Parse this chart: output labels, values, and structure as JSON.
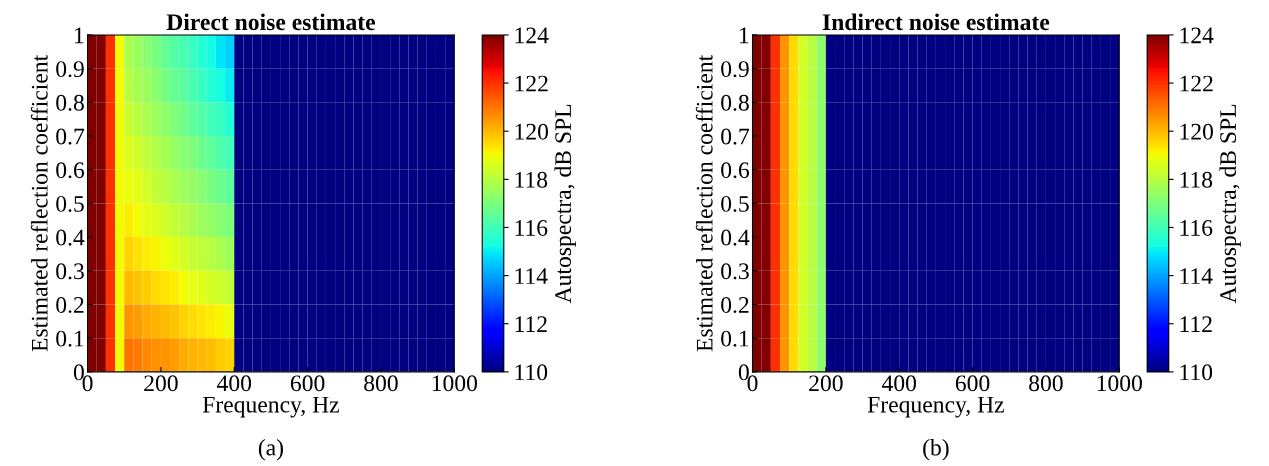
{
  "chart_data": [
    {
      "type": "heatmap",
      "title": "Direct noise estimate",
      "xlabel": "Frequency, Hz",
      "ylabel": "Estimated reflection coefficient",
      "clabel": "Autospectra, dB SPL",
      "annotations": [
        "(a)"
      ],
      "x": [
        12.5,
        37.5,
        62.5,
        87.5,
        112.5,
        137.5,
        162.5,
        187.5,
        212.5,
        237.5,
        262.5,
        287.5,
        312.5,
        337.5,
        362.5,
        387.5,
        412.5,
        437.5,
        462.5,
        487.5,
        512.5,
        537.5,
        562.5,
        587.5,
        612.5,
        637.5,
        662.5,
        687.5,
        712.5,
        737.5,
        762.5,
        787.5,
        812.5,
        837.5,
        862.5,
        887.5,
        912.5,
        937.5,
        962.5,
        987.5
      ],
      "y": [
        0.95,
        0.85,
        0.75,
        0.65,
        0.55,
        0.45,
        0.35,
        0.25,
        0.15,
        0.05
      ],
      "xlim": [
        0,
        1000
      ],
      "xticks": [
        0,
        200,
        400,
        600,
        800,
        1000
      ],
      "ylim": [
        0,
        1
      ],
      "yticks": [
        0,
        0.1,
        0.2,
        0.3,
        0.4,
        0.5,
        0.6,
        0.7,
        0.8,
        0.9,
        1
      ],
      "clim": [
        110,
        124
      ],
      "cticks": [
        110,
        112,
        114,
        116,
        118,
        120,
        122,
        124
      ],
      "grid": false,
      "cells": [
        [
          124,
          124,
          122,
          119,
          117.8,
          117.5,
          117.2,
          116.9,
          116.6,
          116.3,
          116.1,
          115.8,
          115.5,
          115.2,
          114.9,
          114.6,
          110,
          110,
          110,
          110,
          110,
          110,
          110,
          110,
          110,
          110,
          110,
          110,
          110,
          110,
          110,
          110,
          110,
          110,
          110,
          110,
          110,
          110,
          110,
          110
        ],
        [
          124,
          124,
          122,
          119,
          118.0,
          117.7,
          117.5,
          117.2,
          116.9,
          116.6,
          116.4,
          116.1,
          115.8,
          115.5,
          115.3,
          115.0,
          110,
          110,
          110,
          110,
          110,
          110,
          110,
          110,
          110,
          110,
          110,
          110,
          110,
          110,
          110,
          110,
          110,
          110,
          110,
          110,
          110,
          110,
          110,
          110
        ],
        [
          124,
          124,
          122,
          119,
          118.3,
          118.0,
          117.8,
          117.5,
          117.3,
          117.0,
          116.8,
          116.5,
          116.3,
          116.0,
          115.8,
          115.5,
          110,
          110,
          110,
          110,
          110,
          110,
          110,
          110,
          110,
          110,
          110,
          110,
          110,
          110,
          110,
          110,
          110,
          110,
          110,
          110,
          110,
          110,
          110,
          110
        ],
        [
          124,
          124,
          122,
          119,
          118.6,
          118.4,
          118.1,
          117.9,
          117.7,
          117.4,
          117.2,
          117.0,
          116.7,
          116.5,
          116.2,
          116.0,
          110,
          110,
          110,
          110,
          110,
          110,
          110,
          110,
          110,
          110,
          110,
          110,
          110,
          110,
          110,
          110,
          110,
          110,
          110,
          110,
          110,
          110,
          110,
          110
        ],
        [
          124,
          124,
          122,
          119,
          118.9,
          118.7,
          118.5,
          118.2,
          118.0,
          117.8,
          117.6,
          117.4,
          117.2,
          116.9,
          116.7,
          116.5,
          110,
          110,
          110,
          110,
          110,
          110,
          110,
          110,
          110,
          110,
          110,
          110,
          110,
          110,
          110,
          110,
          110,
          110,
          110,
          110,
          110,
          110,
          110,
          110
        ],
        [
          124,
          124,
          122,
          119,
          119.2,
          119.0,
          118.8,
          118.6,
          118.4,
          118.2,
          118.0,
          117.8,
          117.6,
          117.4,
          117.2,
          117.0,
          110,
          110,
          110,
          110,
          110,
          110,
          110,
          110,
          110,
          110,
          110,
          110,
          110,
          110,
          110,
          110,
          110,
          110,
          110,
          110,
          110,
          110,
          110,
          110
        ],
        [
          124,
          124,
          122,
          119,
          119.6,
          119.4,
          119.2,
          119.1,
          118.9,
          118.7,
          118.5,
          118.3,
          118.1,
          118.0,
          117.8,
          117.6,
          110,
          110,
          110,
          110,
          110,
          110,
          110,
          110,
          110,
          110,
          110,
          110,
          110,
          110,
          110,
          110,
          110,
          110,
          110,
          110,
          110,
          110,
          110,
          110
        ],
        [
          124,
          124,
          122,
          119,
          120.0,
          119.8,
          119.7,
          119.5,
          119.3,
          119.2,
          119.0,
          118.8,
          118.7,
          118.5,
          118.4,
          118.2,
          110,
          110,
          110,
          110,
          110,
          110,
          110,
          110,
          110,
          110,
          110,
          110,
          110,
          110,
          110,
          110,
          110,
          110,
          110,
          110,
          110,
          110,
          110,
          110
        ],
        [
          124,
          124,
          122,
          119,
          120.5,
          120.4,
          120.2,
          120.1,
          119.9,
          119.8,
          119.6,
          119.5,
          119.3,
          119.2,
          119.1,
          118.9,
          110,
          110,
          110,
          110,
          110,
          110,
          110,
          110,
          110,
          110,
          110,
          110,
          110,
          110,
          110,
          110,
          110,
          110,
          110,
          110,
          110,
          110,
          110,
          110
        ],
        [
          124,
          124,
          122,
          119,
          121.0,
          120.9,
          120.7,
          120.6,
          120.5,
          120.4,
          120.2,
          120.1,
          120.0,
          119.9,
          119.7,
          119.6,
          110,
          110,
          110,
          110,
          110,
          110,
          110,
          110,
          110,
          110,
          110,
          110,
          110,
          110,
          110,
          110,
          110,
          110,
          110,
          110,
          110,
          110,
          110,
          110
        ]
      ]
    },
    {
      "type": "heatmap",
      "title": "Indirect noise estimate",
      "xlabel": "Frequency, Hz",
      "ylabel": "Estimated reflection coefficient",
      "clabel": "Autospectra, dB SPL",
      "annotations": [
        "(b)"
      ],
      "x": [
        12.5,
        37.5,
        62.5,
        87.5,
        112.5,
        137.5,
        162.5,
        187.5,
        212.5,
        237.5,
        262.5,
        287.5,
        312.5,
        337.5,
        362.5,
        387.5,
        412.5,
        437.5,
        462.5,
        487.5,
        512.5,
        537.5,
        562.5,
        587.5,
        612.5,
        637.5,
        662.5,
        687.5,
        712.5,
        737.5,
        762.5,
        787.5,
        812.5,
        837.5,
        862.5,
        887.5,
        912.5,
        937.5,
        962.5,
        987.5
      ],
      "y": [
        0.95,
        0.85,
        0.75,
        0.65,
        0.55,
        0.45,
        0.35,
        0.25,
        0.15,
        0.05
      ],
      "xlim": [
        0,
        1000
      ],
      "xticks": [
        0,
        200,
        400,
        600,
        800,
        1000
      ],
      "ylim": [
        0,
        1
      ],
      "yticks": [
        0,
        0.1,
        0.2,
        0.3,
        0.4,
        0.5,
        0.6,
        0.7,
        0.8,
        0.9,
        1
      ],
      "clim": [
        110,
        124
      ],
      "cticks": [
        110,
        112,
        114,
        116,
        118,
        120,
        122,
        124
      ],
      "grid": false,
      "cells": [
        [
          124,
          124,
          122,
          120.5,
          119.5,
          118.5,
          118,
          117.3,
          110,
          110,
          110,
          110,
          110,
          110,
          110,
          110,
          110,
          110,
          110,
          110,
          110,
          110,
          110,
          110,
          110,
          110,
          110,
          110,
          110,
          110,
          110,
          110,
          110,
          110,
          110,
          110,
          110,
          110,
          110,
          110
        ],
        [
          124,
          124,
          122,
          120.5,
          119.5,
          118.5,
          118,
          117.3,
          110,
          110,
          110,
          110,
          110,
          110,
          110,
          110,
          110,
          110,
          110,
          110,
          110,
          110,
          110,
          110,
          110,
          110,
          110,
          110,
          110,
          110,
          110,
          110,
          110,
          110,
          110,
          110,
          110,
          110,
          110,
          110
        ],
        [
          124,
          124,
          122,
          120.5,
          119.5,
          118.5,
          118,
          117.3,
          110,
          110,
          110,
          110,
          110,
          110,
          110,
          110,
          110,
          110,
          110,
          110,
          110,
          110,
          110,
          110,
          110,
          110,
          110,
          110,
          110,
          110,
          110,
          110,
          110,
          110,
          110,
          110,
          110,
          110,
          110,
          110
        ],
        [
          124,
          124,
          122,
          120.5,
          119.5,
          118.5,
          118,
          117.3,
          110,
          110,
          110,
          110,
          110,
          110,
          110,
          110,
          110,
          110,
          110,
          110,
          110,
          110,
          110,
          110,
          110,
          110,
          110,
          110,
          110,
          110,
          110,
          110,
          110,
          110,
          110,
          110,
          110,
          110,
          110,
          110
        ],
        [
          124,
          124,
          122,
          120.5,
          119.5,
          118.5,
          118,
          117.3,
          110,
          110,
          110,
          110,
          110,
          110,
          110,
          110,
          110,
          110,
          110,
          110,
          110,
          110,
          110,
          110,
          110,
          110,
          110,
          110,
          110,
          110,
          110,
          110,
          110,
          110,
          110,
          110,
          110,
          110,
          110,
          110
        ],
        [
          124,
          124,
          122,
          120.5,
          119.5,
          118.5,
          118,
          117.3,
          110,
          110,
          110,
          110,
          110,
          110,
          110,
          110,
          110,
          110,
          110,
          110,
          110,
          110,
          110,
          110,
          110,
          110,
          110,
          110,
          110,
          110,
          110,
          110,
          110,
          110,
          110,
          110,
          110,
          110,
          110,
          110
        ],
        [
          124,
          124,
          122,
          120.5,
          119.5,
          118.5,
          118,
          117.3,
          110,
          110,
          110,
          110,
          110,
          110,
          110,
          110,
          110,
          110,
          110,
          110,
          110,
          110,
          110,
          110,
          110,
          110,
          110,
          110,
          110,
          110,
          110,
          110,
          110,
          110,
          110,
          110,
          110,
          110,
          110,
          110
        ],
        [
          124,
          124,
          122,
          120.5,
          119.5,
          118.5,
          118,
          117.3,
          110,
          110,
          110,
          110,
          110,
          110,
          110,
          110,
          110,
          110,
          110,
          110,
          110,
          110,
          110,
          110,
          110,
          110,
          110,
          110,
          110,
          110,
          110,
          110,
          110,
          110,
          110,
          110,
          110,
          110,
          110,
          110
        ],
        [
          124,
          124,
          122,
          120.5,
          119.5,
          118.5,
          118,
          117.3,
          110,
          110,
          110,
          110,
          110,
          110,
          110,
          110,
          110,
          110,
          110,
          110,
          110,
          110,
          110,
          110,
          110,
          110,
          110,
          110,
          110,
          110,
          110,
          110,
          110,
          110,
          110,
          110,
          110,
          110,
          110,
          110
        ],
        [
          124,
          124,
          122,
          120.5,
          119.5,
          118.5,
          118,
          117.3,
          110,
          110,
          110,
          110,
          110,
          110,
          110,
          110,
          110,
          110,
          110,
          110,
          110,
          110,
          110,
          110,
          110,
          110,
          110,
          110,
          110,
          110,
          110,
          110,
          110,
          110,
          110,
          110,
          110,
          110,
          110,
          110
        ]
      ]
    }
  ]
}
